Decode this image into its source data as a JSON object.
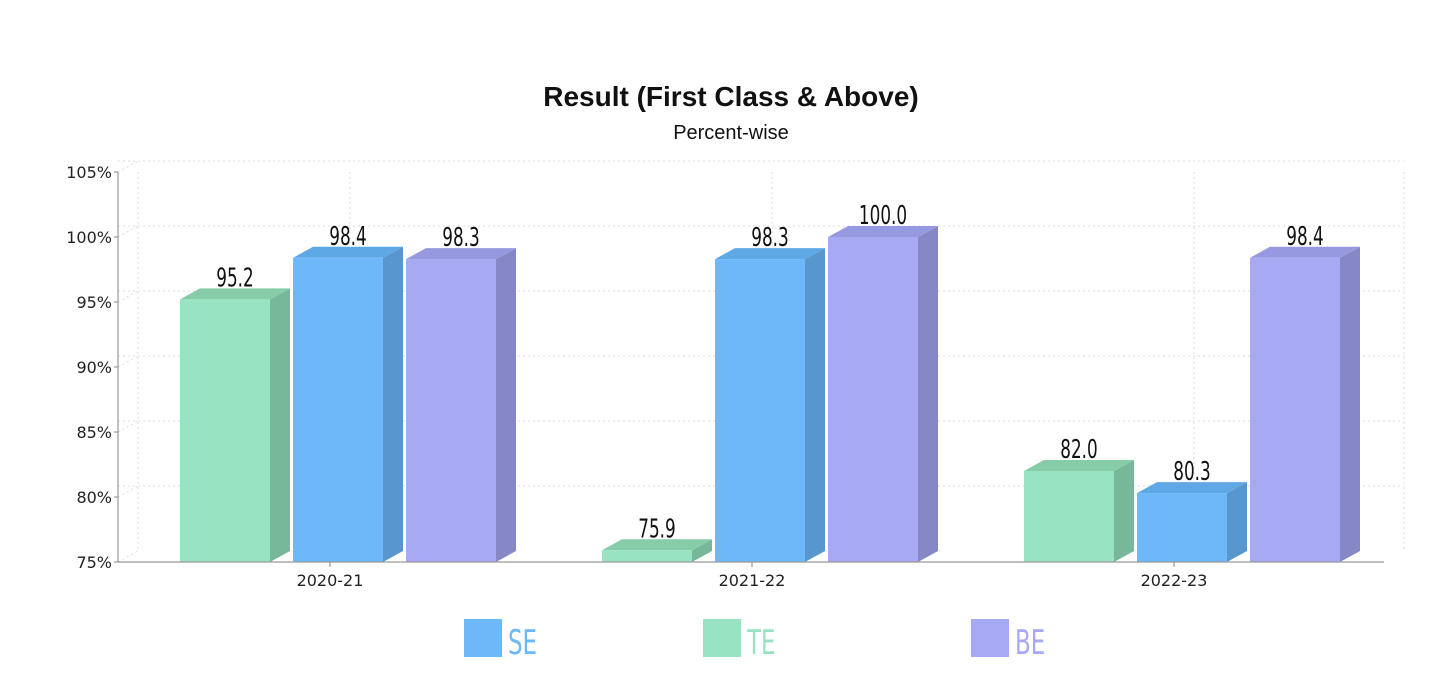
{
  "chart_data": {
    "type": "bar",
    "title": "Result (First Class & Above)",
    "subtitle": "Percent-wise",
    "categories": [
      "2020-21",
      "2021-22",
      "2022-23"
    ],
    "series": [
      {
        "name": "TE",
        "values": [
          95.2,
          75.9,
          82.0
        ],
        "color": "#98e4c2",
        "side_color": "#77b89a",
        "top_color": "#86cca9"
      },
      {
        "name": "SE",
        "values": [
          98.4,
          98.3,
          80.3
        ],
        "color": "#6cb8f9",
        "side_color": "#5897ce",
        "top_color": "#5fa8e6"
      },
      {
        "name": "BE",
        "values": [
          98.3,
          100.0,
          98.4
        ],
        "color": "#a7a9f2",
        "side_color": "#8688c6",
        "top_color": "#9799e0"
      }
    ],
    "legend_order": [
      "SE",
      "TE",
      "BE"
    ],
    "yticks": [
      "75%",
      "80%",
      "85%",
      "90%",
      "95%",
      "100%",
      "105%"
    ],
    "ylim": [
      75,
      105
    ],
    "grid": true,
    "legend_position": "bottom"
  }
}
